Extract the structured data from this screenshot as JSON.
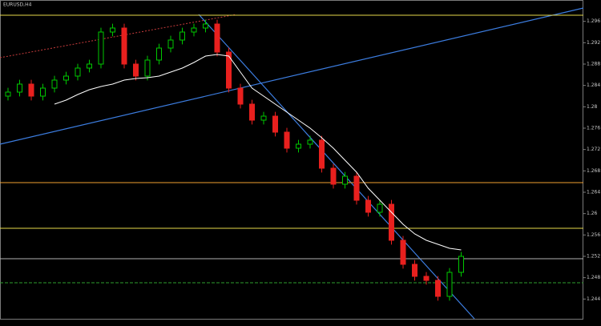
{
  "chart_data": {
    "type": "candlestick",
    "title": "EURUSD,H4",
    "ylim": [
      1.24,
      1.3
    ],
    "yticks": [
      1.244,
      1.248,
      1.252,
      1.256,
      1.26,
      1.264,
      1.268,
      1.272,
      1.276,
      1.28,
      1.284,
      1.288,
      1.292,
      1.296
    ],
    "up_color": "#00c800",
    "down_color": "#e8201e",
    "ma_color": "#ffffff",
    "open": [
      1.282,
      1.28275,
      1.28425,
      1.282,
      1.2835,
      1.285,
      1.28575,
      1.28725,
      1.288,
      1.294,
      1.29475,
      1.288,
      1.28575,
      1.28875,
      1.291,
      1.2925,
      1.294,
      1.29475,
      1.2955,
      1.29025,
      1.2835,
      1.2805,
      1.2775,
      1.27825,
      1.27525,
      1.27225,
      1.273,
      1.27375,
      1.2685,
      1.2655,
      1.267,
      1.2625,
      1.26025,
      1.26175,
      1.255,
      1.2505,
      1.24825,
      1.2475,
      1.2445,
      1.249
    ],
    "high": [
      1.28355,
      1.28505,
      1.28505,
      1.2843,
      1.2858,
      1.28655,
      1.28805,
      1.2888,
      1.2948,
      1.29555,
      1.29555,
      1.2888,
      1.28955,
      1.2918,
      1.2933,
      1.2948,
      1.29555,
      1.2963,
      1.2963,
      1.29105,
      1.2843,
      1.2813,
      1.27905,
      1.27905,
      1.27605,
      1.2738,
      1.27455,
      1.27455,
      1.2693,
      1.2678,
      1.2678,
      1.2633,
      1.26255,
      1.26255,
      1.2558,
      1.2513,
      1.24905,
      1.2483,
      1.2498,
      1.2528
    ],
    "low": [
      1.2812,
      1.28195,
      1.2812,
      1.2812,
      1.2827,
      1.2842,
      1.28495,
      1.28645,
      1.2872,
      1.2932,
      1.2872,
      1.28495,
      1.28495,
      1.28795,
      1.2902,
      1.2917,
      1.2932,
      1.29395,
      1.28945,
      1.2827,
      1.2797,
      1.2767,
      1.2767,
      1.27445,
      1.27145,
      1.27145,
      1.2722,
      1.2677,
      1.2647,
      1.2647,
      1.2617,
      1.25945,
      1.25945,
      1.2542,
      1.2497,
      1.24745,
      1.2467,
      1.2437,
      1.2437,
      1.2482
    ],
    "close": [
      1.28275,
      1.28425,
      1.282,
      1.2835,
      1.285,
      1.28575,
      1.28725,
      1.288,
      1.294,
      1.29475,
      1.288,
      1.28575,
      1.28875,
      1.291,
      1.2925,
      1.294,
      1.29475,
      1.2955,
      1.29025,
      1.2835,
      1.2805,
      1.2775,
      1.27825,
      1.27525,
      1.27225,
      1.273,
      1.27375,
      1.2685,
      1.2655,
      1.267,
      1.2625,
      1.26025,
      1.26175,
      1.255,
      1.2505,
      1.24825,
      1.2475,
      1.2445,
      1.249,
      1.252
    ],
    "ma": [
      null,
      null,
      null,
      null,
      1.2805,
      1.28125,
      1.2823,
      1.2832,
      1.2838,
      1.28425,
      1.285,
      1.2853,
      1.28545,
      1.28575,
      1.2865,
      1.28725,
      1.2883,
      1.2895,
      1.2898,
      1.2895,
      1.2865,
      1.2835,
      1.282,
      1.2805,
      1.279,
      1.2775,
      1.276,
      1.2742,
      1.27225,
      1.27,
      1.26775,
      1.26475,
      1.2625,
      1.26025,
      1.258,
      1.2562,
      1.255,
      1.25425,
      1.2535,
      1.2532
    ],
    "levels": [
      {
        "value": 1.29715,
        "color": "#e6d84a"
      },
      {
        "value": 1.2658,
        "color": "#f0a030"
      },
      {
        "value": 1.25725,
        "color": "#e6d84a"
      },
      {
        "value": 1.25155,
        "color": "#b0b0b0"
      },
      {
        "value": 1.24705,
        "color": "#2e9e2e"
      }
    ]
  }
}
